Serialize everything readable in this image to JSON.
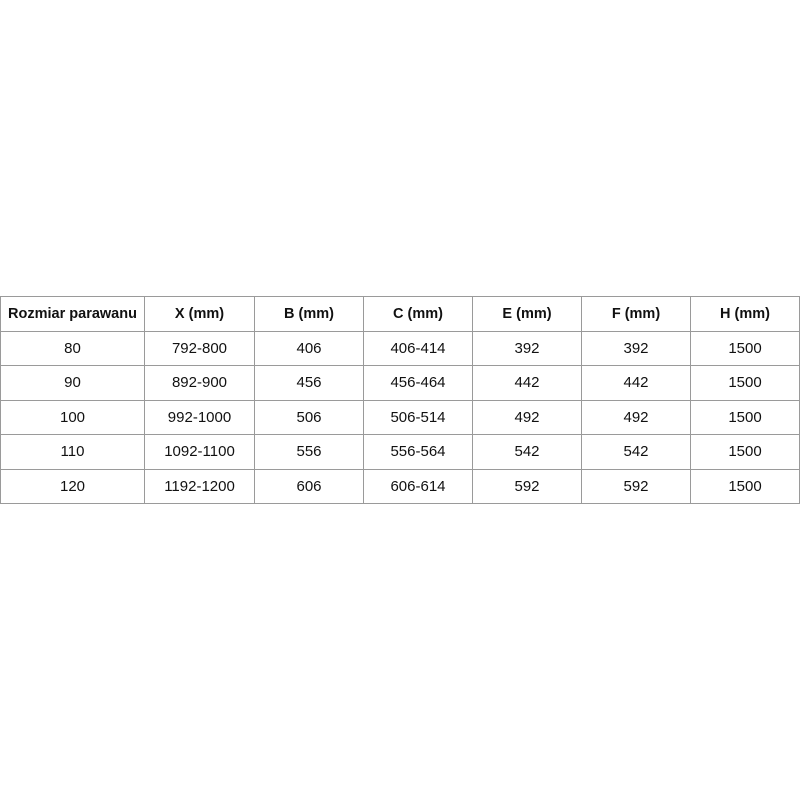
{
  "table": {
    "headers": [
      "Rozmiar parawanu",
      "X (mm)",
      "B (mm)",
      "C (mm)",
      "E (mm)",
      "F (mm)",
      "H (mm)"
    ],
    "rows": [
      [
        "80",
        "792-800",
        "406",
        "406-414",
        "392",
        "392",
        "1500"
      ],
      [
        "90",
        "892-900",
        "456",
        "456-464",
        "442",
        "442",
        "1500"
      ],
      [
        "100",
        "992-1000",
        "506",
        "506-514",
        "492",
        "492",
        "1500"
      ],
      [
        "110",
        "1092-1100",
        "556",
        "556-564",
        "542",
        "542",
        "1500"
      ],
      [
        "120",
        "1192-1200",
        "606",
        "606-614",
        "592",
        "592",
        "1500"
      ]
    ]
  }
}
